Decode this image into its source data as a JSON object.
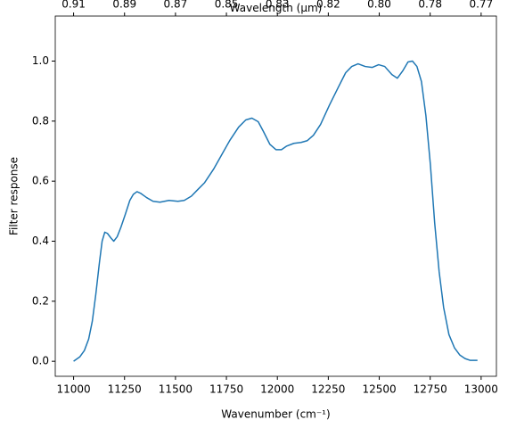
{
  "chart_data": {
    "type": "line",
    "xlabel": "Wavenumber (cm⁻¹)",
    "ylabel": "Filter response",
    "x2label": "Wavelength (μm)",
    "xlim": [
      10910,
      13075
    ],
    "ylim": [
      -0.05,
      1.15
    ],
    "xticks": [
      11000,
      11250,
      11500,
      11750,
      12000,
      12250,
      12500,
      12750,
      13000
    ],
    "yticks": [
      {
        "value": 0,
        "label": "0.0"
      },
      0.2,
      0.4,
      0.6,
      0.8,
      {
        "value": 1,
        "label": "1.0"
      }
    ],
    "x2ticks": [
      {
        "value": 11000,
        "label": "0.91"
      },
      {
        "value": 11250,
        "label": "0.89"
      },
      {
        "value": 11500,
        "label": "0.87"
      },
      {
        "value": 11750,
        "label": "0.85"
      },
      {
        "value": 12000,
        "label": "0.83"
      },
      {
        "value": 12250,
        "label": "0.82"
      },
      {
        "value": 12500,
        "label": "0.80"
      },
      {
        "value": 12750,
        "label": "0.78"
      },
      {
        "value": 13000,
        "label": "0.77"
      }
    ],
    "series": [
      {
        "color": "#1f77b4",
        "x": [
          11000,
          11031,
          11053,
          11074,
          11092,
          11109,
          11127,
          11140,
          11153,
          11166,
          11184,
          11197,
          11214,
          11232,
          11254,
          11276,
          11293,
          11311,
          11328,
          11359,
          11390,
          11424,
          11468,
          11512,
          11543,
          11578,
          11608,
          11643,
          11687,
          11731,
          11766,
          11810,
          11845,
          11875,
          11906,
          11932,
          11963,
          11993,
          12020,
          12046,
          12081,
          12116,
          12147,
          12177,
          12212,
          12256,
          12300,
          12335,
          12365,
          12396,
          12431,
          12466,
          12497,
          12527,
          12562,
          12589,
          12615,
          12641,
          12663,
          12685,
          12707,
          12729,
          12751,
          12772,
          12794,
          12816,
          12842,
          12869,
          12895,
          12921,
          12947,
          12982
        ],
        "values": [
          0.0,
          0.015,
          0.036,
          0.074,
          0.134,
          0.223,
          0.33,
          0.4,
          0.43,
          0.426,
          0.41,
          0.4,
          0.415,
          0.446,
          0.49,
          0.536,
          0.556,
          0.565,
          0.56,
          0.545,
          0.533,
          0.53,
          0.536,
          0.533,
          0.536,
          0.55,
          0.571,
          0.595,
          0.64,
          0.693,
          0.735,
          0.78,
          0.804,
          0.81,
          0.798,
          0.765,
          0.723,
          0.705,
          0.705,
          0.717,
          0.726,
          0.729,
          0.735,
          0.753,
          0.789,
          0.854,
          0.914,
          0.961,
          0.982,
          0.991,
          0.982,
          0.979,
          0.988,
          0.982,
          0.955,
          0.943,
          0.967,
          0.997,
          1.0,
          0.982,
          0.932,
          0.818,
          0.655,
          0.461,
          0.298,
          0.179,
          0.089,
          0.045,
          0.021,
          0.009,
          0.003,
          0.003
        ]
      }
    ]
  }
}
